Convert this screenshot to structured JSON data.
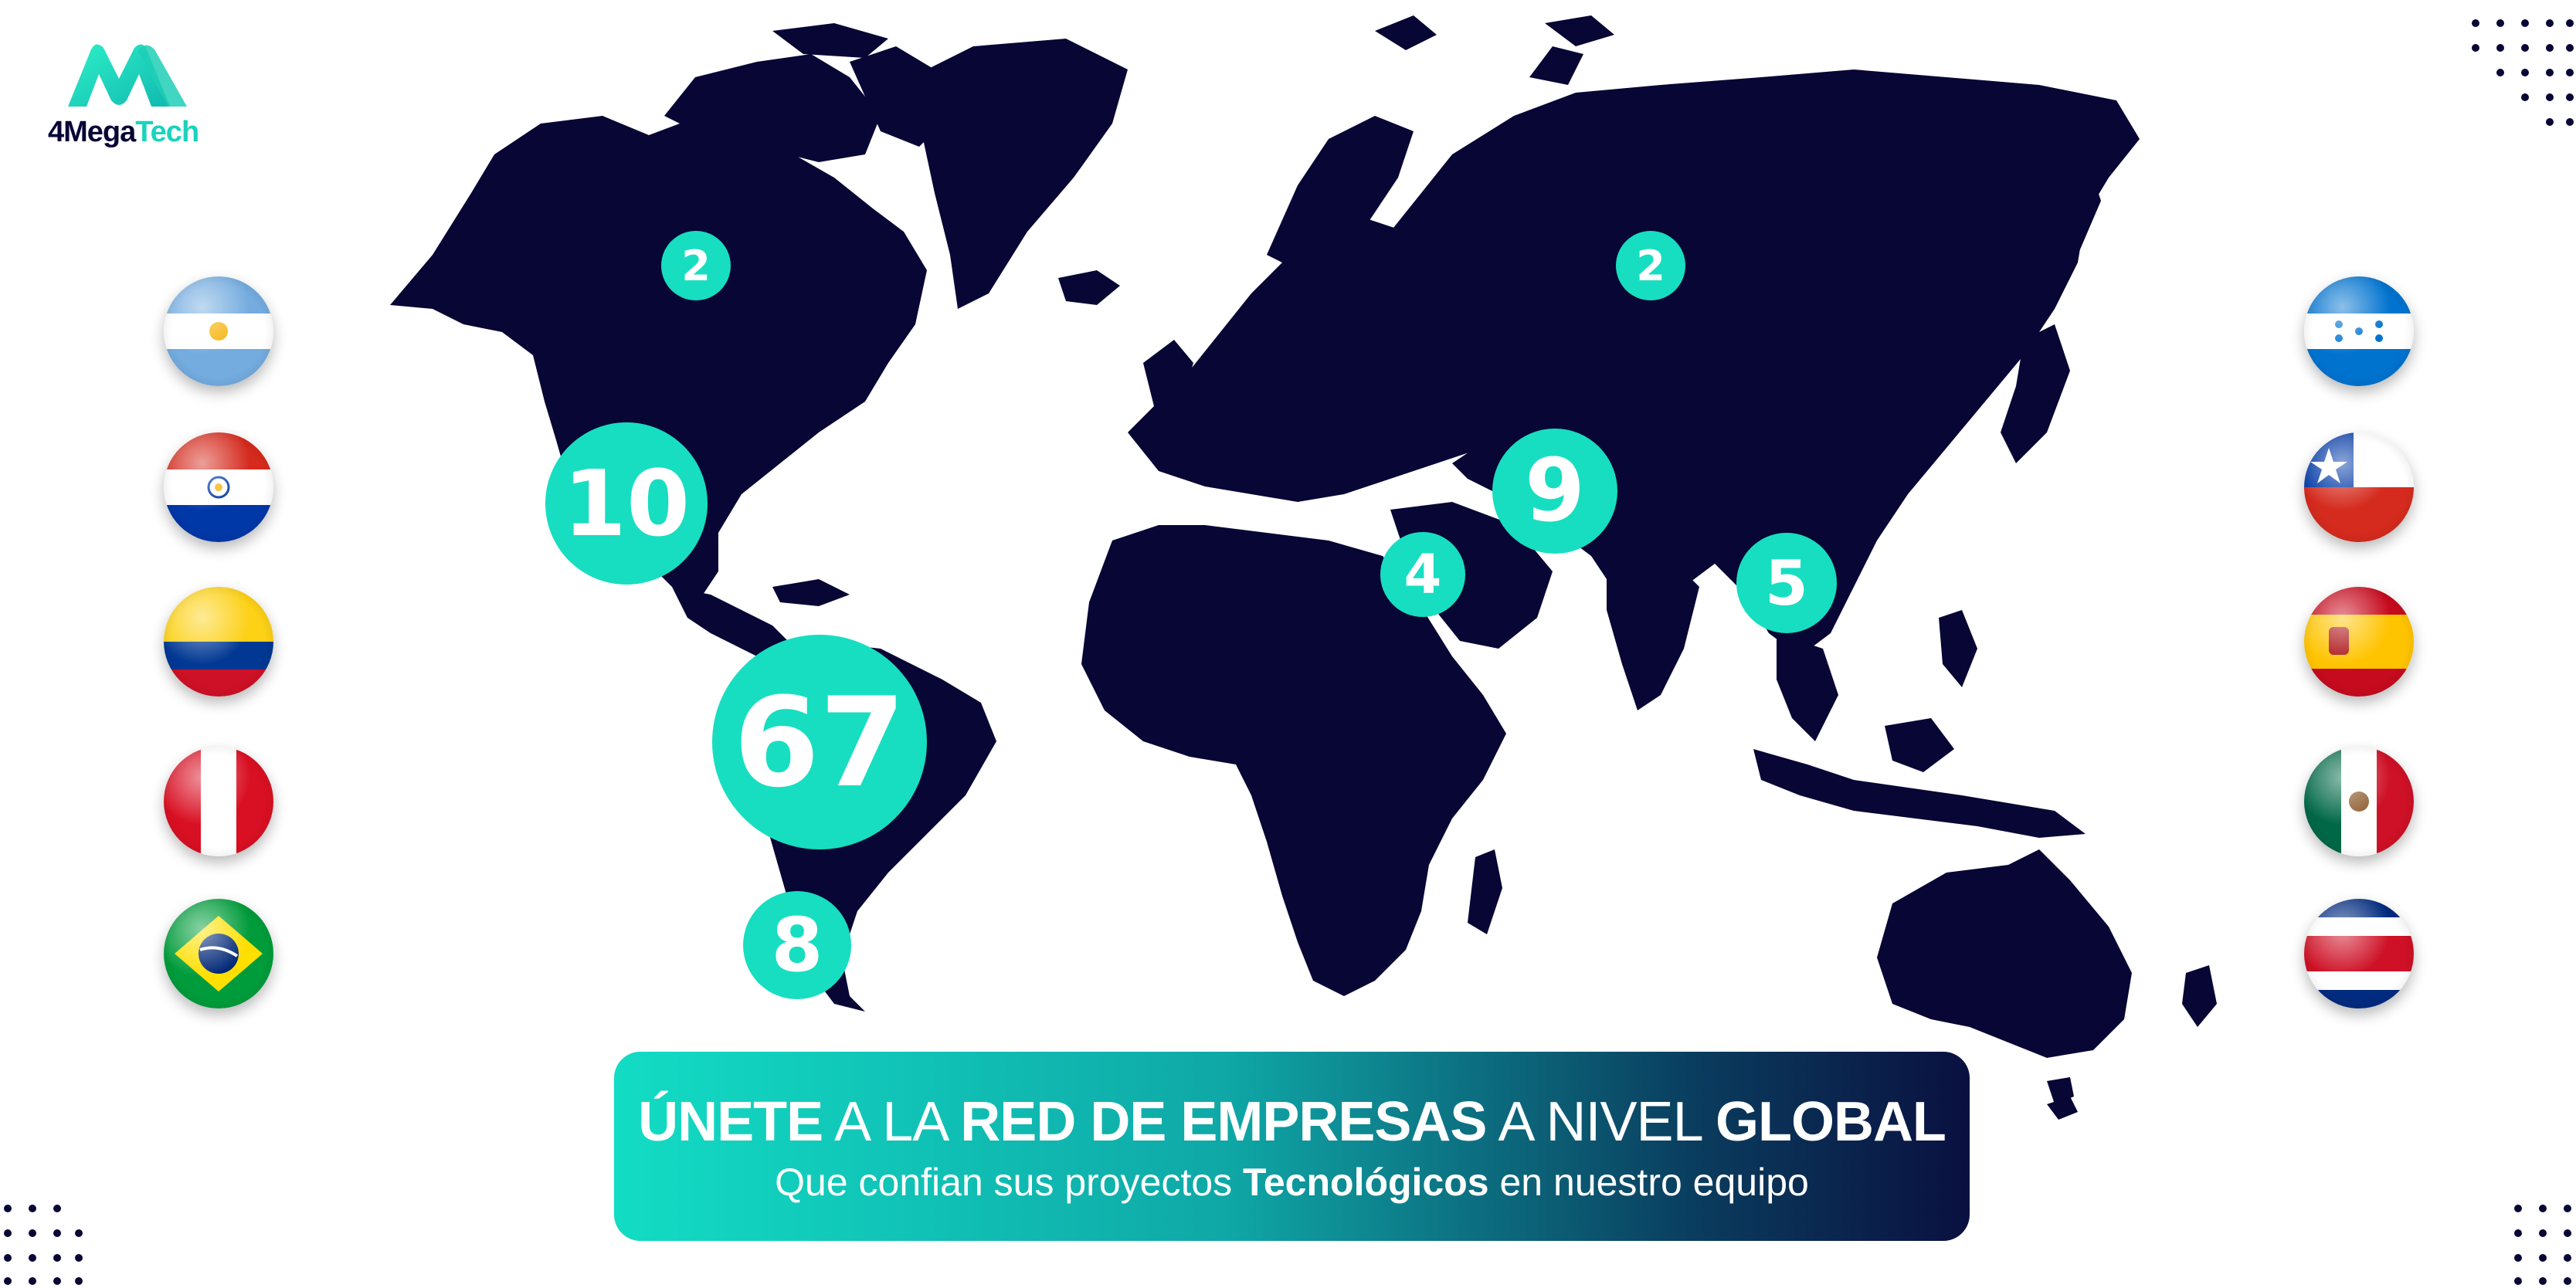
{
  "logo": {
    "brand_part1": "4Mega",
    "brand_part2": "Tech"
  },
  "bubbles": [
    {
      "id": "canada",
      "value": "2"
    },
    {
      "id": "usa",
      "value": "10"
    },
    {
      "id": "south-america",
      "value": "67"
    },
    {
      "id": "southern-cone",
      "value": "8"
    },
    {
      "id": "middle-east",
      "value": "4"
    },
    {
      "id": "central-asia",
      "value": "9"
    },
    {
      "id": "china",
      "value": "5"
    },
    {
      "id": "russia",
      "value": "2"
    }
  ],
  "flags_left": [
    "argentina-flag",
    "paraguay-flag",
    "colombia-flag",
    "peru-flag",
    "brazil-flag"
  ],
  "flags_right": [
    "honduras-flag",
    "chile-flag",
    "spain-flag",
    "mexico-flag",
    "costa-rica-flag"
  ],
  "banner": {
    "l1_w1": "ÚNETE",
    "l1_w2": " A LA ",
    "l1_w3": "RED DE EMPRESAS",
    "l1_w4": " A NIVEL ",
    "l1_w5": "GLOBAL",
    "l2_w1": "Que confian sus proyectos ",
    "l2_w2": "Tecnológicos",
    "l2_w3": " en nuestro equipo"
  },
  "colors": {
    "map": "#070635",
    "accent": "#17dec1",
    "banner_start": "#12dcc4",
    "banner_end": "#0a1040"
  }
}
